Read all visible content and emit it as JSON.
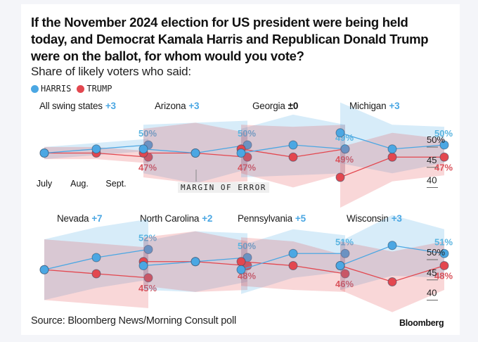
{
  "title": "If the November 2024 election for US president were being held today, and Democrat Kamala Harris and Republican Donald Trump were on the ballot, for whom would you vote?",
  "subtitle": "Share of likely voters who said:",
  "legend": [
    {
      "label": "HARRIS",
      "color": "#4ba7e3"
    },
    {
      "label": "TRUMP",
      "color": "#e3474f"
    }
  ],
  "annotation": "MARGIN OF ERROR",
  "source": "Source: Bloomberg News/Morning Consult poll",
  "brand": "Bloomberg",
  "colors": {
    "harris": "#4ba7e3",
    "trump": "#e3474f",
    "harris_label": "#5ab4e0",
    "trump_label": "#d9525b"
  },
  "chart_data": {
    "type": "line",
    "title": "If the November 2024 election for US president were being held today, and Democrat Kamala Harris and Republican Donald Trump were on the ballot, for whom would you vote?",
    "subtitle": "Share of likely voters who said:",
    "x": [
      "July",
      "Aug.",
      "Sept."
    ],
    "y_ticks": [
      "50%",
      "45",
      "40"
    ],
    "ylim": [
      40,
      50
    ],
    "legend_position": "top-left",
    "panels": [
      {
        "name": "All swing states",
        "margin": "+3",
        "harris": [
          48,
          49,
          50
        ],
        "trump": [
          48,
          48,
          47
        ],
        "harris_label": "50%",
        "trump_label": "47%",
        "moe": [
          1,
          1,
          1
        ]
      },
      {
        "name": "Arizona",
        "margin": "+3",
        "harris": [
          49,
          48,
          50
        ],
        "trump": [
          48,
          48,
          47
        ],
        "harris_label": "50%",
        "trump_label": "47%",
        "moe": [
          4,
          5,
          4
        ]
      },
      {
        "name": "Georgia",
        "margin": "±0",
        "harris": [
          48,
          50,
          49
        ],
        "trump": [
          49,
          47,
          49
        ],
        "harris_label": "49%",
        "trump_label": "49%",
        "moe": [
          4,
          5,
          4
        ]
      },
      {
        "name": "Michigan",
        "margin": "+3",
        "harris": [
          53,
          49,
          50
        ],
        "trump": [
          42,
          47,
          47
        ],
        "harris_label": "50%",
        "trump_label": "47%",
        "moe": [
          5,
          4,
          3
        ]
      },
      {
        "name": "Nevada",
        "margin": "+7",
        "harris": [
          47,
          50,
          52
        ],
        "trump": [
          47,
          46,
          45
        ],
        "harris_label": "52%",
        "trump_label": "45%",
        "moe": [
          5,
          5,
          5
        ]
      },
      {
        "name": "North Carolina",
        "margin": "+2",
        "harris": [
          48,
          49,
          50
        ],
        "trump": [
          49,
          49,
          48
        ],
        "harris_label": "50%",
        "trump_label": "48%",
        "moe": [
          4,
          5,
          4
        ]
      },
      {
        "name": "Pennsylvania",
        "margin": "+5",
        "harris": [
          47,
          51,
          51
        ],
        "trump": [
          49,
          48,
          46
        ],
        "harris_label": "51%",
        "trump_label": "46%",
        "moe": [
          4,
          4,
          3
        ]
      },
      {
        "name": "Wisconsin",
        "margin": "+3",
        "harris": [
          48,
          53,
          51
        ],
        "trump": [
          48,
          44,
          48
        ],
        "harris_label": "51%",
        "trump_label": "48%",
        "moe": [
          4,
          5,
          4
        ]
      }
    ]
  }
}
